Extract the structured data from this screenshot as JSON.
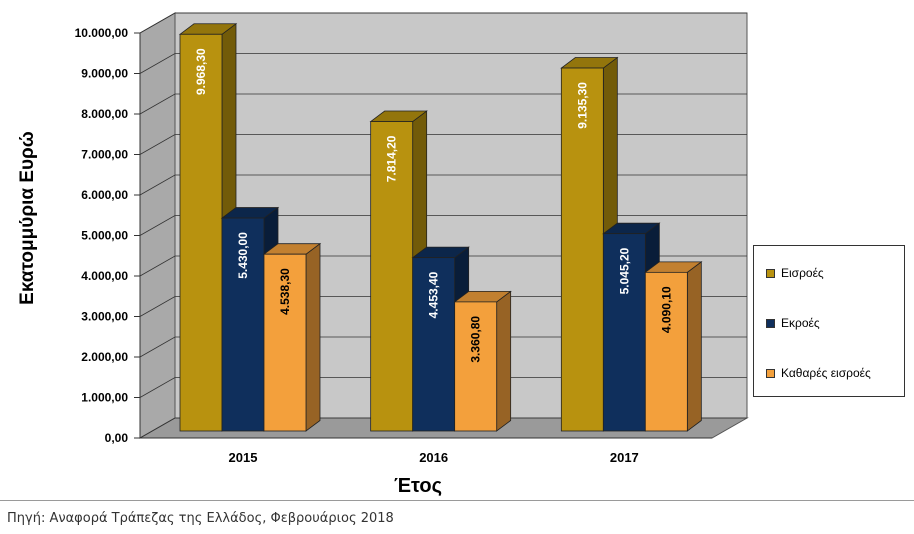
{
  "chart_data": {
    "type": "bar",
    "style": "3d-clustered",
    "categories": [
      "2015",
      "2016",
      "2017"
    ],
    "series": [
      {
        "name": "Εισροές",
        "values": [
          9968.3,
          7814.2,
          9135.3
        ],
        "labels": [
          "9.968,30",
          "7.814,20",
          "9.135,30"
        ]
      },
      {
        "name": "Εκροές",
        "values": [
          5430.0,
          4453.4,
          5045.2
        ],
        "labels": [
          "5.430,00",
          "4.453,40",
          "5.045,20"
        ]
      },
      {
        "name": "Καθαρές εισροές",
        "values": [
          4538.3,
          3360.8,
          4090.1
        ],
        "labels": [
          "4.538,30",
          "3.360,80",
          "4.090,10"
        ]
      }
    ],
    "xlabel": "Έτος",
    "ylabel": "Εκατομμύρια Ευρώ",
    "ylim": [
      0,
      10000
    ],
    "yticks": [
      0,
      1000,
      2000,
      3000,
      4000,
      5000,
      6000,
      7000,
      8000,
      9000,
      10000
    ],
    "ytick_labels": [
      "0,00",
      "1.000,00",
      "2.000,00",
      "3.000,00",
      "4.000,00",
      "5.000,00",
      "6.000,00",
      "7.000,00",
      "8.000,00",
      "9.000,00",
      "10.000,00"
    ],
    "grid": true,
    "legend_position": "right"
  },
  "colors": {
    "inflows": "#b8920f",
    "outflows": "#0f2f5c",
    "net": "#f3a03c",
    "wall": "#c8c8c8",
    "floor": "#9a9a9a"
  },
  "source_note": "Πηγή: Αναφορά Τράπεζας της Ελλάδος, Φεβρουάριος 2018"
}
